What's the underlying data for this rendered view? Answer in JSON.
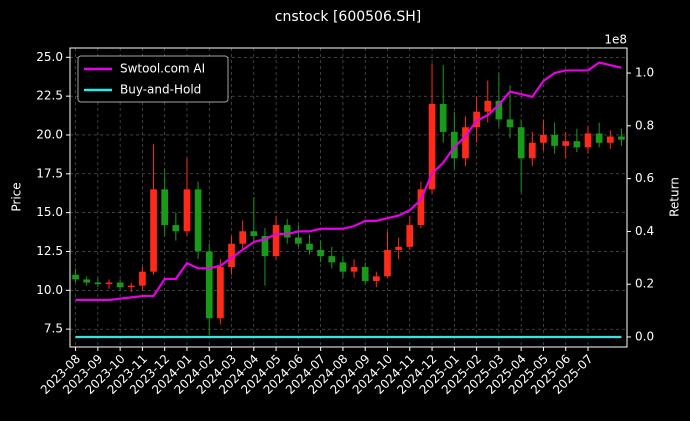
{
  "chart_data": {
    "type": "candlestick",
    "title": "cnstock [600506.SH]",
    "ylabel": "Price",
    "y2label": "Return",
    "y2_offset_label": "1e8",
    "categories": [
      "2023-08",
      null,
      "2023-09",
      null,
      "2023-10",
      null,
      "2023-11",
      null,
      "2023-12",
      null,
      "2024-01",
      null,
      "2024-02",
      null,
      "2024-03",
      null,
      "2024-04",
      null,
      "2024-05",
      null,
      "2024-06",
      null,
      "2024-07",
      null,
      "2024-08",
      null,
      "2024-09",
      null,
      "2024-10",
      null,
      "2024-11",
      null,
      "2024-12",
      null,
      "2025-01",
      null,
      "2025-02",
      null,
      "2025-03",
      null,
      "2025-04",
      null,
      "2025-05",
      null,
      "2025-06",
      null,
      "2025-07",
      null,
      null,
      null
    ],
    "open": [
      11.0,
      10.7,
      10.5,
      10.4,
      10.5,
      10.2,
      10.3,
      11.2,
      16.5,
      14.2,
      13.8,
      16.5,
      12.5,
      8.2,
      11.5,
      13.0,
      13.8,
      13.5,
      12.2,
      14.2,
      13.4,
      13.0,
      12.6,
      12.2,
      11.8,
      11.2,
      11.5,
      10.6,
      10.9,
      12.6,
      12.8,
      14.2,
      16.5,
      22.0,
      20.2,
      18.5,
      20.5,
      21.5,
      22.2,
      21.0,
      20.5,
      18.5,
      19.5,
      20.0,
      19.3,
      19.6,
      19.2,
      20.1,
      19.5,
      19.9
    ],
    "high": [
      11.4,
      10.9,
      10.8,
      10.7,
      10.7,
      10.5,
      11.5,
      19.4,
      17.8,
      15.0,
      18.5,
      17.0,
      13.0,
      12.0,
      13.5,
      14.5,
      16.0,
      14.0,
      14.8,
      14.6,
      14.2,
      13.6,
      13.2,
      12.8,
      12.2,
      12.0,
      11.8,
      11.2,
      13.8,
      13.4,
      14.8,
      17.0,
      24.6,
      24.5,
      21.5,
      21.2,
      22.5,
      23.5,
      24.0,
      23.2,
      21.0,
      20.2,
      21.0,
      20.8,
      20.2,
      20.4,
      20.6,
      20.8,
      20.3,
      20.4
    ],
    "low": [
      10.5,
      10.3,
      10.2,
      10.1,
      10.0,
      9.9,
      10.0,
      11.0,
      13.5,
      13.2,
      13.5,
      12.0,
      7.1,
      7.8,
      11.0,
      12.5,
      13.0,
      10.3,
      12.0,
      13.0,
      12.8,
      12.3,
      11.8,
      11.4,
      10.8,
      10.8,
      10.4,
      10.2,
      10.8,
      12.0,
      12.6,
      14.0,
      16.2,
      19.5,
      17.8,
      18.0,
      19.5,
      20.8,
      20.5,
      19.8,
      16.3,
      18.0,
      19.0,
      18.8,
      18.5,
      18.9,
      18.8,
      19.2,
      19.1,
      19.3
    ],
    "close": [
      10.7,
      10.5,
      10.4,
      10.5,
      10.2,
      10.3,
      11.2,
      16.5,
      14.2,
      13.8,
      16.5,
      12.5,
      8.2,
      11.5,
      13.0,
      13.8,
      13.5,
      12.2,
      14.2,
      13.4,
      13.0,
      12.6,
      12.2,
      11.8,
      11.2,
      11.5,
      10.6,
      10.9,
      12.6,
      12.8,
      14.2,
      16.5,
      22.0,
      20.2,
      18.5,
      20.5,
      21.5,
      22.2,
      21.0,
      20.5,
      18.5,
      19.5,
      20.0,
      19.3,
      19.6,
      19.2,
      20.1,
      19.5,
      19.9,
      19.7
    ],
    "up_color": "#ff2a1a",
    "down_color": "#1a9a1a",
    "series": [
      {
        "name": "Swtool.com AI",
        "color": "#e600e6",
        "axis": "y2",
        "values": [
          0.14,
          0.14,
          0.14,
          0.14,
          0.145,
          0.15,
          0.155,
          0.155,
          0.22,
          0.22,
          0.28,
          0.26,
          0.26,
          0.27,
          0.3,
          0.33,
          0.36,
          0.37,
          0.39,
          0.39,
          0.4,
          0.4,
          0.41,
          0.41,
          0.41,
          0.42,
          0.44,
          0.44,
          0.45,
          0.46,
          0.48,
          0.52,
          0.62,
          0.66,
          0.72,
          0.76,
          0.82,
          0.84,
          0.88,
          0.93,
          0.92,
          0.91,
          0.97,
          1.0,
          1.01,
          1.01,
          1.01,
          1.04,
          1.03,
          1.02
        ]
      },
      {
        "name": "Buy-and-Hold",
        "color": "#33e6e6",
        "axis": "y2",
        "values": [
          0,
          0,
          0,
          0,
          0,
          0,
          0,
          0,
          0,
          0,
          0,
          0,
          0,
          0,
          0,
          0,
          0,
          0,
          0,
          0,
          0,
          0,
          0,
          0,
          0,
          0,
          0,
          0,
          0,
          0,
          0,
          0,
          0,
          0,
          0,
          0,
          0,
          0,
          0,
          0,
          0,
          0,
          0,
          0,
          0,
          0,
          0,
          0,
          0,
          0
        ]
      }
    ],
    "ylim": [
      6.35,
      25.6
    ],
    "yticks": [
      7.5,
      {
        "value": 10,
        "label": "10.0"
      },
      12.5,
      {
        "value": 15,
        "label": "15.0"
      },
      17.5,
      {
        "value": 20,
        "label": "20.0"
      },
      22.5,
      {
        "value": 25,
        "label": "25.0"
      }
    ],
    "y2lim": [
      -0.038,
      1.095
    ],
    "y2ticks": [
      {
        "value": 0,
        "label": "0.0"
      },
      0.2,
      0.4,
      0.6,
      0.8,
      {
        "value": 1,
        "label": "1.0"
      }
    ],
    "grid": true,
    "legend": "upper left"
  }
}
